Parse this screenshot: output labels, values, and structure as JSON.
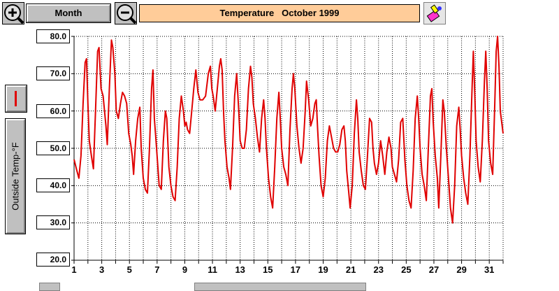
{
  "toolbar": {
    "zoom_in_icon": "zoom-in-icon",
    "zoom_out_icon": "zoom-out-icon",
    "period_label": "Month",
    "title_label": "Temperature",
    "title_period": "October 1999",
    "paint_icon": "paint-icon"
  },
  "colors": {
    "series": "#e00000",
    "title_bg": "#ffcc99",
    "button_bg": "#c0c0c0",
    "grid": "#000000"
  },
  "chart_data": {
    "type": "line",
    "title": "Temperature   October 1999",
    "xlabel": "",
    "ylabel": "Outside Temp-°F",
    "xlim": [
      1,
      32
    ],
    "ylim": [
      20,
      80
    ],
    "grid": true,
    "yticks": [
      "80.0",
      "70.0",
      "60.0",
      "50.0",
      "40.0",
      "30.0",
      "20.0"
    ],
    "xticks": [
      "1",
      "3",
      "5",
      "7",
      "9",
      "11",
      "13",
      "15",
      "17",
      "19",
      "21",
      "23",
      "25",
      "27",
      "29",
      "31"
    ],
    "series": [
      {
        "name": "Outside Temp-°F",
        "color": "#e00000",
        "points": [
          [
            1.0,
            47
          ],
          [
            1.2,
            44
          ],
          [
            1.35,
            42
          ],
          [
            1.5,
            48
          ],
          [
            1.65,
            62
          ],
          [
            1.8,
            73
          ],
          [
            1.9,
            74
          ],
          [
            2.0,
            62
          ],
          [
            2.1,
            52
          ],
          [
            2.25,
            48
          ],
          [
            2.4,
            44.5
          ],
          [
            2.55,
            60
          ],
          [
            2.7,
            76
          ],
          [
            2.8,
            77
          ],
          [
            2.95,
            66
          ],
          [
            3.1,
            64
          ],
          [
            3.2,
            60
          ],
          [
            3.3,
            56
          ],
          [
            3.4,
            51
          ],
          [
            3.55,
            66
          ],
          [
            3.7,
            79
          ],
          [
            3.8,
            77
          ],
          [
            3.95,
            70
          ],
          [
            4.05,
            60
          ],
          [
            4.2,
            58
          ],
          [
            4.35,
            62
          ],
          [
            4.5,
            65
          ],
          [
            4.65,
            64
          ],
          [
            4.8,
            62
          ],
          [
            4.95,
            54
          ],
          [
            5.1,
            51
          ],
          [
            5.2,
            48
          ],
          [
            5.3,
            43
          ],
          [
            5.45,
            52
          ],
          [
            5.6,
            58
          ],
          [
            5.75,
            61
          ],
          [
            5.85,
            50
          ],
          [
            6.0,
            42
          ],
          [
            6.15,
            39
          ],
          [
            6.3,
            38
          ],
          [
            6.45,
            50
          ],
          [
            6.6,
            66
          ],
          [
            6.7,
            71
          ],
          [
            6.8,
            58
          ],
          [
            6.9,
            53
          ],
          [
            7.0,
            48
          ],
          [
            7.15,
            40
          ],
          [
            7.3,
            39
          ],
          [
            7.45,
            52
          ],
          [
            7.6,
            60
          ],
          [
            7.7,
            58
          ],
          [
            7.85,
            45
          ],
          [
            8.0,
            40
          ],
          [
            8.15,
            37
          ],
          [
            8.3,
            36
          ],
          [
            8.45,
            45
          ],
          [
            8.6,
            58
          ],
          [
            8.75,
            64
          ],
          [
            8.9,
            60
          ],
          [
            9.0,
            56
          ],
          [
            9.1,
            57
          ],
          [
            9.2,
            55
          ],
          [
            9.35,
            54
          ],
          [
            9.5,
            60
          ],
          [
            9.65,
            66
          ],
          [
            9.8,
            71
          ],
          [
            9.95,
            65
          ],
          [
            10.1,
            63
          ],
          [
            10.3,
            63
          ],
          [
            10.5,
            64
          ],
          [
            10.7,
            70
          ],
          [
            10.85,
            72
          ],
          [
            10.95,
            66
          ],
          [
            11.05,
            64
          ],
          [
            11.2,
            60
          ],
          [
            11.35,
            66
          ],
          [
            11.5,
            72
          ],
          [
            11.6,
            74
          ],
          [
            11.7,
            71
          ],
          [
            11.8,
            60
          ],
          [
            11.9,
            52
          ],
          [
            12.05,
            45
          ],
          [
            12.2,
            42
          ],
          [
            12.3,
            39
          ],
          [
            12.45,
            50
          ],
          [
            12.6,
            64
          ],
          [
            12.75,
            70
          ],
          [
            12.9,
            60
          ],
          [
            13.0,
            52
          ],
          [
            13.15,
            50
          ],
          [
            13.3,
            50
          ],
          [
            13.45,
            55
          ],
          [
            13.6,
            66
          ],
          [
            13.75,
            72
          ],
          [
            13.85,
            69
          ],
          [
            13.95,
            62
          ],
          [
            14.1,
            58
          ],
          [
            14.25,
            53
          ],
          [
            14.4,
            49
          ],
          [
            14.55,
            58
          ],
          [
            14.7,
            63
          ],
          [
            14.8,
            58
          ],
          [
            14.9,
            50
          ],
          [
            15.05,
            42
          ],
          [
            15.2,
            37
          ],
          [
            15.35,
            34
          ],
          [
            15.5,
            45
          ],
          [
            15.65,
            58
          ],
          [
            15.8,
            65
          ],
          [
            15.9,
            58
          ],
          [
            16.0,
            50
          ],
          [
            16.15,
            45
          ],
          [
            16.3,
            43
          ],
          [
            16.45,
            40
          ],
          [
            16.6,
            55
          ],
          [
            16.75,
            66
          ],
          [
            16.85,
            70
          ],
          [
            16.95,
            66
          ],
          [
            17.1,
            56
          ],
          [
            17.25,
            50
          ],
          [
            17.4,
            46
          ],
          [
            17.55,
            50
          ],
          [
            17.7,
            60
          ],
          [
            17.8,
            68
          ],
          [
            17.95,
            63
          ],
          [
            18.1,
            56
          ],
          [
            18.25,
            58
          ],
          [
            18.4,
            62
          ],
          [
            18.5,
            63
          ],
          [
            18.6,
            55
          ],
          [
            18.7,
            48
          ],
          [
            18.85,
            40
          ],
          [
            19.0,
            37
          ],
          [
            19.15,
            42
          ],
          [
            19.3,
            52
          ],
          [
            19.45,
            56
          ],
          [
            19.6,
            53
          ],
          [
            19.75,
            50
          ],
          [
            19.9,
            49
          ],
          [
            20.05,
            49
          ],
          [
            20.2,
            51
          ],
          [
            20.35,
            55
          ],
          [
            20.5,
            56
          ],
          [
            20.6,
            52
          ],
          [
            20.7,
            44
          ],
          [
            20.85,
            38
          ],
          [
            20.95,
            34
          ],
          [
            21.1,
            40
          ],
          [
            21.25,
            54
          ],
          [
            21.4,
            63
          ],
          [
            21.5,
            58
          ],
          [
            21.6,
            49
          ],
          [
            21.75,
            44
          ],
          [
            21.9,
            40
          ],
          [
            22.05,
            39
          ],
          [
            22.2,
            48
          ],
          [
            22.35,
            58
          ],
          [
            22.5,
            57
          ],
          [
            22.6,
            50
          ],
          [
            22.7,
            46
          ],
          [
            22.85,
            43
          ],
          [
            23.0,
            46
          ],
          [
            23.15,
            52
          ],
          [
            23.3,
            48
          ],
          [
            23.45,
            43
          ],
          [
            23.6,
            49
          ],
          [
            23.75,
            53
          ],
          [
            23.9,
            50
          ],
          [
            24.0,
            45
          ],
          [
            24.15,
            43
          ],
          [
            24.3,
            41
          ],
          [
            24.45,
            47
          ],
          [
            24.6,
            57
          ],
          [
            24.75,
            58
          ],
          [
            24.9,
            47
          ],
          [
            25.05,
            40
          ],
          [
            25.2,
            36
          ],
          [
            25.35,
            34
          ],
          [
            25.5,
            44
          ],
          [
            25.65,
            58
          ],
          [
            25.8,
            64
          ],
          [
            25.9,
            58
          ],
          [
            26.0,
            50
          ],
          [
            26.15,
            43
          ],
          [
            26.3,
            40
          ],
          [
            26.45,
            36
          ],
          [
            26.6,
            50
          ],
          [
            26.75,
            64
          ],
          [
            26.85,
            66
          ],
          [
            26.95,
            57
          ],
          [
            27.1,
            48
          ],
          [
            27.25,
            42
          ],
          [
            27.35,
            34
          ],
          [
            27.5,
            48
          ],
          [
            27.65,
            63
          ],
          [
            27.75,
            60
          ],
          [
            27.9,
            50
          ],
          [
            28.05,
            42
          ],
          [
            28.2,
            34
          ],
          [
            28.35,
            30
          ],
          [
            28.5,
            40
          ],
          [
            28.65,
            56
          ],
          [
            28.8,
            61
          ],
          [
            28.9,
            55
          ],
          [
            29.0,
            48
          ],
          [
            29.15,
            42
          ],
          [
            29.3,
            38
          ],
          [
            29.45,
            35
          ],
          [
            29.6,
            48
          ],
          [
            29.75,
            65
          ],
          [
            29.85,
            76
          ],
          [
            29.95,
            65
          ],
          [
            30.05,
            52
          ],
          [
            30.2,
            45
          ],
          [
            30.35,
            41
          ],
          [
            30.5,
            52
          ],
          [
            30.65,
            68
          ],
          [
            30.75,
            76
          ],
          [
            30.85,
            66
          ],
          [
            30.95,
            52
          ],
          [
            31.1,
            46
          ],
          [
            31.25,
            43
          ],
          [
            31.4,
            62
          ],
          [
            31.5,
            76
          ],
          [
            31.6,
            80
          ],
          [
            31.7,
            72
          ],
          [
            31.8,
            60
          ],
          [
            31.9,
            57
          ],
          [
            32.0,
            54
          ]
        ]
      }
    ]
  }
}
